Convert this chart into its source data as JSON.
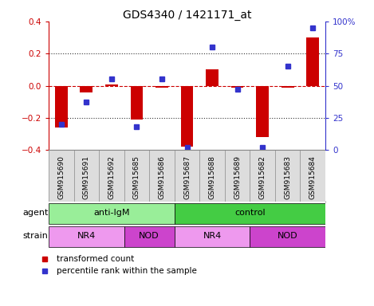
{
  "title": "GDS4340 / 1421171_at",
  "samples": [
    "GSM915690",
    "GSM915691",
    "GSM915692",
    "GSM915685",
    "GSM915686",
    "GSM915687",
    "GSM915688",
    "GSM915689",
    "GSM915682",
    "GSM915683",
    "GSM915684"
  ],
  "red_values": [
    -0.26,
    -0.04,
    0.01,
    -0.21,
    -0.01,
    -0.38,
    0.1,
    -0.01,
    -0.32,
    -0.01,
    0.3
  ],
  "blue_values": [
    20,
    37,
    55,
    18,
    55,
    2,
    80,
    47,
    2,
    65,
    95
  ],
  "ylim_left": [
    -0.4,
    0.4
  ],
  "ylim_right": [
    0,
    100
  ],
  "yticks_left": [
    -0.4,
    -0.2,
    0.0,
    0.2,
    0.4
  ],
  "yticks_right": [
    0,
    25,
    50,
    75,
    100
  ],
  "yticklabels_right": [
    "0",
    "25",
    "50",
    "75",
    "100%"
  ],
  "red_color": "#CC0000",
  "blue_color": "#3333CC",
  "dashed_color": "#CC0000",
  "grid_color": "#333333",
  "agent_groups": [
    {
      "label": "anti-IgM",
      "start": 0,
      "end": 5,
      "color": "#99EE99"
    },
    {
      "label": "control",
      "start": 5,
      "end": 11,
      "color": "#44CC44"
    }
  ],
  "strain_groups": [
    {
      "label": "NR4",
      "start": 0,
      "end": 3,
      "color": "#EE99EE"
    },
    {
      "label": "NOD",
      "start": 3,
      "end": 5,
      "color": "#CC44CC"
    },
    {
      "label": "NR4",
      "start": 5,
      "end": 8,
      "color": "#EE99EE"
    },
    {
      "label": "NOD",
      "start": 8,
      "end": 11,
      "color": "#CC44CC"
    }
  ],
  "legend_red": "transformed count",
  "legend_blue": "percentile rank within the sample",
  "agent_label": "agent",
  "strain_label": "strain",
  "bg_color": "#FFFFFF",
  "sample_area_color": "#DDDDDD"
}
